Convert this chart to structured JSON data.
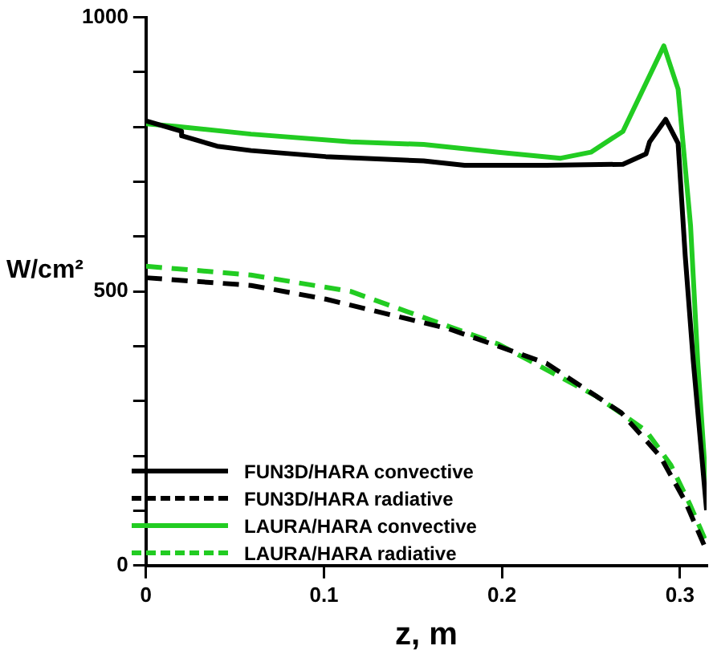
{
  "chart_data": {
    "type": "line",
    "xlabel": "z, m",
    "ylabel": "W/cm²",
    "xlim": [
      0,
      0.315
    ],
    "xticks": [
      0,
      0.1,
      0.2,
      0.3
    ],
    "ylim": [
      0,
      1000
    ],
    "yticks": [
      0,
      {
        "value": 100,
        "label": null
      },
      {
        "value": 200,
        "label": null
      },
      {
        "value": 300,
        "label": null
      },
      {
        "value": 400,
        "label": null
      },
      500,
      {
        "value": 600,
        "label": null
      },
      {
        "value": 700,
        "label": null
      },
      {
        "value": 800,
        "label": null
      },
      {
        "value": 900,
        "label": null
      },
      1000
    ],
    "grid": false,
    "legend": "bottom left",
    "marker": "none",
    "series": [
      {
        "name": "FUN3D/HARA convective",
        "color": "#000000",
        "line_style": "solid",
        "x": [
          0,
          0.02,
          0.02,
          0.04,
          0.059,
          0.101,
          0.156,
          0.179,
          0.225,
          0.268,
          0.281,
          0.283,
          0.292,
          0.299,
          0.303,
          0.3075,
          0.315
        ],
        "values": [
          811,
          792,
          784,
          765,
          757,
          746,
          738,
          730,
          730,
          732,
          751,
          773,
          814,
          770,
          565,
          374,
          101
        ]
      },
      {
        "name": "FUN3D/HARA radiative",
        "color": "#000000",
        "line_style": "dashed",
        "x": [
          0,
          0.059,
          0.101,
          0.17,
          0.225,
          0.267,
          0.289,
          0.303,
          0.315
        ],
        "values": [
          525,
          511,
          486,
          432,
          369,
          279,
          199,
          117,
          27
        ]
      },
      {
        "name": "LAURA/HARA convective",
        "color": "#22cc22",
        "line_style": "solid",
        "x": [
          0,
          0.017,
          0.059,
          0.115,
          0.156,
          0.198,
          0.233,
          0.25,
          0.268,
          0.291,
          0.299,
          0.306,
          0.31,
          0.315
        ],
        "values": [
          806,
          801,
          787,
          773,
          768,
          754,
          743,
          754,
          792,
          948,
          869,
          620,
          374,
          131
        ]
      },
      {
        "name": "LAURA/HARA radiative",
        "color": "#22cc22",
        "line_style": "dashed",
        "x": [
          0,
          0.059,
          0.115,
          0.198,
          0.253,
          0.281,
          0.295,
          0.306,
          0.314
        ],
        "values": [
          546,
          530,
          500,
          404,
          309,
          246,
          183,
          109,
          49
        ]
      }
    ]
  }
}
